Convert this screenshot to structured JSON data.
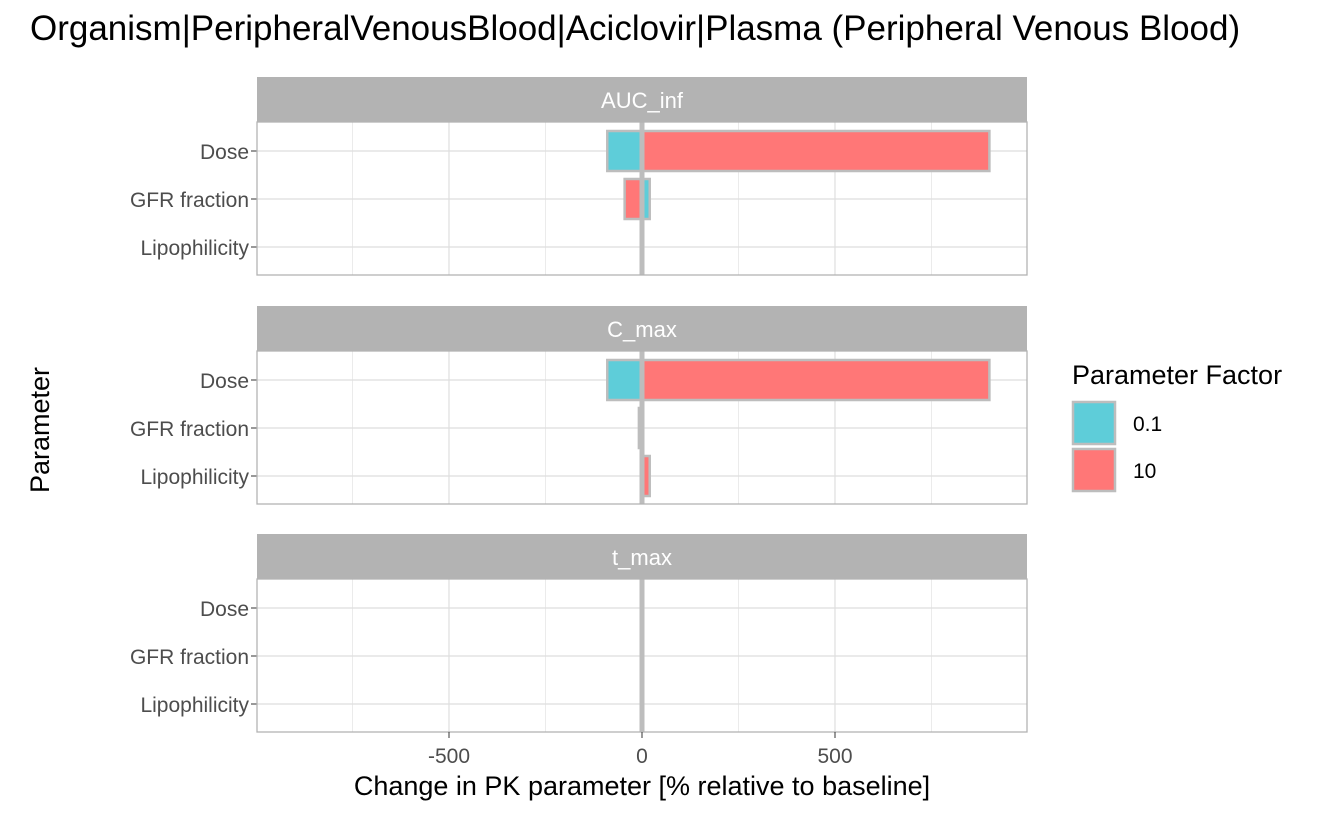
{
  "chart_data": {
    "type": "bar",
    "orientation": "horizontal",
    "title": "Organism|PeripheralVenousBlood|Aciclovir|Plasma (Peripheral Venous Blood)",
    "xlabel": "Change in PK parameter [% relative to baseline]",
    "ylabel": "Parameter",
    "xlim": [
      -1000,
      1000
    ],
    "x_ticks": [
      -500,
      0,
      500
    ],
    "x_tick_labels": [
      "-500",
      "0",
      "500"
    ],
    "categories": [
      "Dose",
      "GFR fraction",
      "Lipophilicity"
    ],
    "legend": {
      "title": "Parameter Factor",
      "position": "right",
      "entries": [
        {
          "label": "0.1",
          "color": "#5ECDD9"
        },
        {
          "label": "10",
          "color": "#FF7777"
        }
      ]
    },
    "panels": [
      {
        "name": "AUC_inf",
        "series": [
          {
            "name": "0.1",
            "values": [
              -90,
              20,
              0
            ]
          },
          {
            "name": "10",
            "values": [
              900,
              -45,
              0
            ]
          }
        ]
      },
      {
        "name": "C_max",
        "series": [
          {
            "name": "0.1",
            "values": [
              -90,
              -8,
              0
            ]
          },
          {
            "name": "10",
            "values": [
              900,
              0,
              20
            ]
          }
        ]
      },
      {
        "name": "t_max",
        "series": [
          {
            "name": "0.1",
            "values": [
              0,
              0,
              0
            ]
          },
          {
            "name": "10",
            "values": [
              0,
              0,
              0
            ]
          }
        ]
      }
    ],
    "colors": {
      "strip": "#B3B3B3",
      "grid": "#DEDEDE",
      "border": "#B3B3B3",
      "bar_outline": "#BDBDBD",
      "zero_line": "#BDBDBD"
    },
    "grid": true
  }
}
